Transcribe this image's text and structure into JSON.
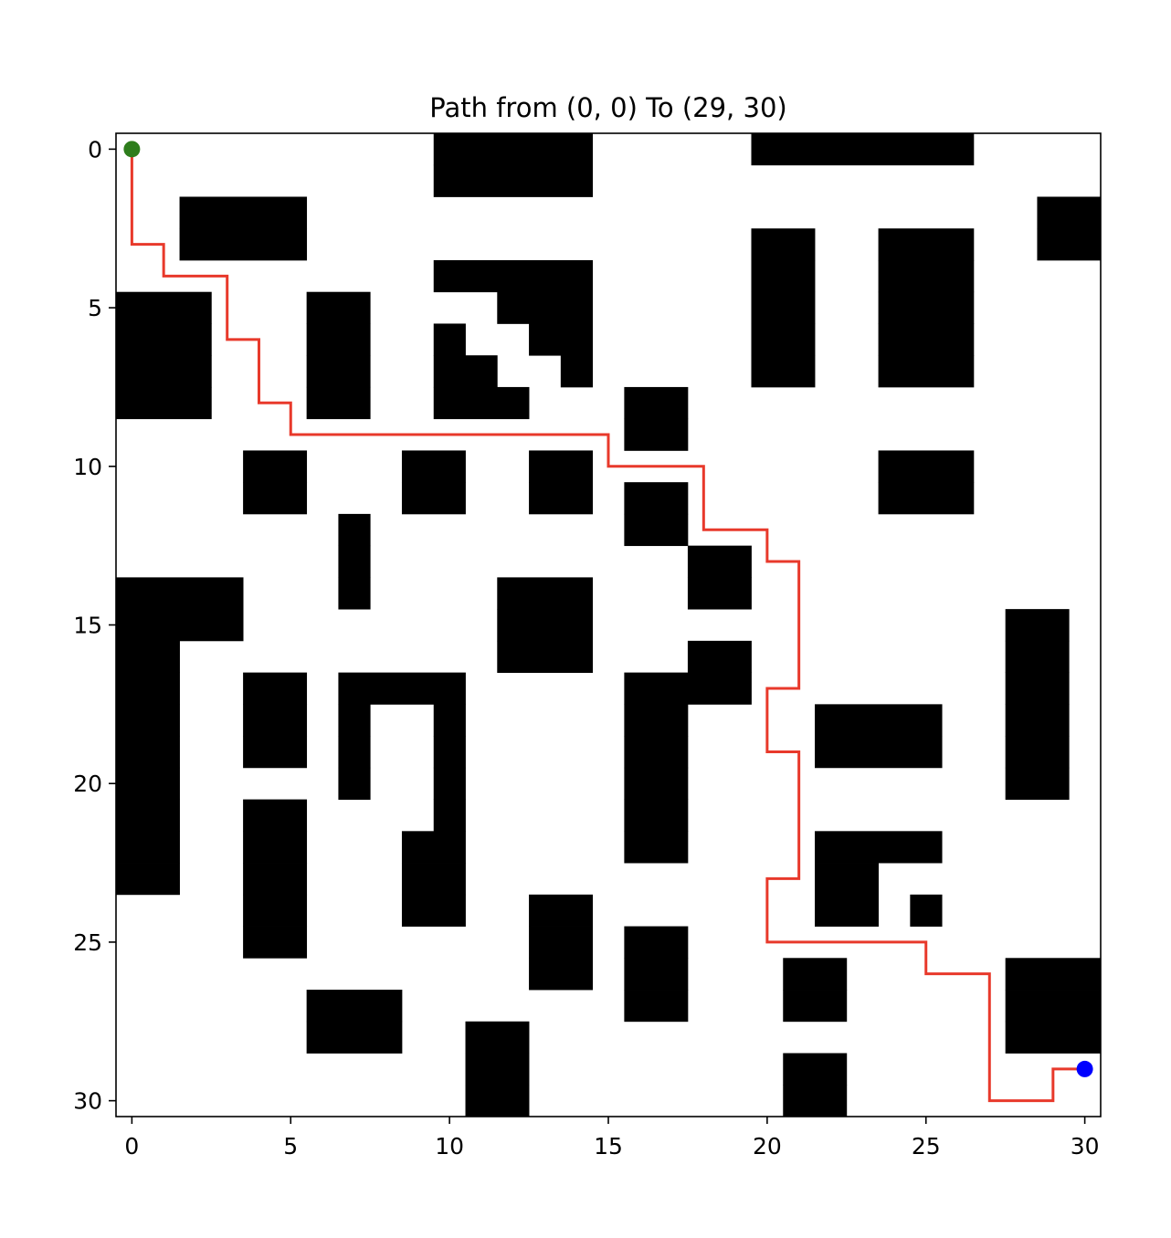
{
  "chart_data": {
    "type": "heatmap",
    "title": "Path from (0, 0) To (29, 30)",
    "xlabel": "",
    "ylabel": "",
    "grid": false,
    "y_axis_inverted": true,
    "xlim": [
      -0.5,
      30.5
    ],
    "ylim": [
      30.5,
      -0.5
    ],
    "xticks": [
      0,
      5,
      10,
      15,
      20,
      25,
      30
    ],
    "yticks": [
      0,
      5,
      10,
      15,
      20,
      25,
      30
    ],
    "xtick_labels": [
      "0",
      "5",
      "10",
      "15",
      "20",
      "25",
      "30"
    ],
    "ytick_labels": [
      "0",
      "5",
      "10",
      "15",
      "20",
      "25",
      "30"
    ],
    "grid_size": [
      31,
      31
    ],
    "obstacle_color": "#000000",
    "free_color": "#ffffff",
    "path_color": "#e8392b",
    "start_color": "#2e7d1c",
    "goal_color": "#0000ff",
    "obstacles": [
      {
        "row": 0,
        "cols": [
          [
            10,
            14
          ],
          [
            20,
            26
          ]
        ]
      },
      {
        "row": 1,
        "cols": [
          [
            10,
            14
          ]
        ]
      },
      {
        "row": 2,
        "cols": [
          [
            2,
            5
          ],
          [
            29,
            30
          ]
        ]
      },
      {
        "row": 3,
        "cols": [
          [
            2,
            5
          ],
          [
            20,
            21
          ],
          [
            24,
            26
          ],
          [
            29,
            30
          ]
        ]
      },
      {
        "row": 4,
        "cols": [
          [
            10,
            14
          ],
          [
            20,
            21
          ],
          [
            24,
            26
          ]
        ]
      },
      {
        "row": 5,
        "cols": [
          [
            0,
            2
          ],
          [
            6,
            7
          ],
          [
            12,
            14
          ],
          [
            20,
            21
          ],
          [
            24,
            26
          ]
        ]
      },
      {
        "row": 6,
        "cols": [
          [
            0,
            2
          ],
          [
            6,
            7
          ],
          [
            10,
            10
          ],
          [
            13,
            14
          ],
          [
            20,
            21
          ],
          [
            24,
            26
          ]
        ]
      },
      {
        "row": 7,
        "cols": [
          [
            0,
            2
          ],
          [
            6,
            7
          ],
          [
            10,
            11
          ],
          [
            14,
            14
          ],
          [
            20,
            21
          ],
          [
            24,
            26
          ]
        ]
      },
      {
        "row": 8,
        "cols": [
          [
            0,
            2
          ],
          [
            6,
            7
          ],
          [
            10,
            12
          ],
          [
            16,
            17
          ]
        ]
      },
      {
        "row": 9,
        "cols": [
          [
            16,
            17
          ]
        ]
      },
      {
        "row": 10,
        "cols": [
          [
            4,
            5
          ],
          [
            9,
            10
          ],
          [
            13,
            14
          ],
          [
            24,
            26
          ]
        ]
      },
      {
        "row": 11,
        "cols": [
          [
            4,
            5
          ],
          [
            9,
            10
          ],
          [
            13,
            14
          ],
          [
            16,
            17
          ],
          [
            24,
            26
          ]
        ]
      },
      {
        "row": 12,
        "cols": [
          [
            7,
            7
          ],
          [
            16,
            17
          ]
        ]
      },
      {
        "row": 13,
        "cols": [
          [
            7,
            7
          ],
          [
            18,
            19
          ]
        ]
      },
      {
        "row": 14,
        "cols": [
          [
            0,
            3
          ],
          [
            7,
            7
          ],
          [
            12,
            14
          ],
          [
            18,
            19
          ]
        ]
      },
      {
        "row": 15,
        "cols": [
          [
            0,
            3
          ],
          [
            12,
            14
          ],
          [
            28,
            29
          ]
        ]
      },
      {
        "row": 16,
        "cols": [
          [
            0,
            1
          ],
          [
            12,
            14
          ],
          [
            18,
            19
          ],
          [
            28,
            29
          ]
        ]
      },
      {
        "row": 17,
        "cols": [
          [
            0,
            1
          ],
          [
            4,
            5
          ],
          [
            7,
            10
          ],
          [
            16,
            19
          ],
          [
            28,
            29
          ]
        ]
      },
      {
        "row": 18,
        "cols": [
          [
            0,
            1
          ],
          [
            4,
            5
          ],
          [
            7,
            7
          ],
          [
            10,
            10
          ],
          [
            16,
            17
          ],
          [
            22,
            25
          ],
          [
            28,
            29
          ]
        ]
      },
      {
        "row": 19,
        "cols": [
          [
            0,
            1
          ],
          [
            4,
            5
          ],
          [
            7,
            7
          ],
          [
            10,
            10
          ],
          [
            16,
            17
          ],
          [
            22,
            25
          ],
          [
            28,
            29
          ]
        ]
      },
      {
        "row": 20,
        "cols": [
          [
            0,
            1
          ],
          [
            7,
            7
          ],
          [
            10,
            10
          ],
          [
            16,
            17
          ],
          [
            28,
            29
          ]
        ]
      },
      {
        "row": 21,
        "cols": [
          [
            0,
            1
          ],
          [
            4,
            5
          ],
          [
            10,
            10
          ],
          [
            16,
            17
          ]
        ]
      },
      {
        "row": 22,
        "cols": [
          [
            0,
            1
          ],
          [
            4,
            5
          ],
          [
            9,
            10
          ],
          [
            16,
            17
          ],
          [
            22,
            25
          ]
        ]
      },
      {
        "row": 23,
        "cols": [
          [
            0,
            1
          ],
          [
            4,
            5
          ],
          [
            9,
            10
          ],
          [
            22,
            23
          ]
        ]
      },
      {
        "row": 24,
        "cols": [
          [
            4,
            5
          ],
          [
            9,
            10
          ],
          [
            13,
            14
          ],
          [
            22,
            23
          ],
          [
            25,
            25
          ]
        ]
      },
      {
        "row": 25,
        "cols": [
          [
            4,
            5
          ],
          [
            13,
            14
          ],
          [
            16,
            17
          ]
        ]
      },
      {
        "row": 26,
        "cols": [
          [
            13,
            14
          ],
          [
            16,
            17
          ],
          [
            21,
            22
          ],
          [
            28,
            30
          ]
        ]
      },
      {
        "row": 27,
        "cols": [
          [
            6,
            8
          ],
          [
            16,
            17
          ],
          [
            21,
            22
          ],
          [
            28,
            30
          ]
        ]
      },
      {
        "row": 28,
        "cols": [
          [
            6,
            8
          ],
          [
            11,
            12
          ],
          [
            28,
            30
          ]
        ]
      },
      {
        "row": 29,
        "cols": [
          [
            11,
            12
          ],
          [
            21,
            22
          ]
        ]
      },
      {
        "row": 30,
        "cols": [
          [
            11,
            12
          ],
          [
            21,
            22
          ]
        ]
      }
    ],
    "path": [
      [
        0,
        0
      ],
      [
        0,
        3
      ],
      [
        1,
        3
      ],
      [
        1,
        4
      ],
      [
        3,
        4
      ],
      [
        3,
        6
      ],
      [
        4,
        6
      ],
      [
        4,
        8
      ],
      [
        5,
        8
      ],
      [
        5,
        9
      ],
      [
        15,
        9
      ],
      [
        15,
        10
      ],
      [
        18,
        10
      ],
      [
        18,
        12
      ],
      [
        20,
        12
      ],
      [
        20,
        13
      ],
      [
        21,
        13
      ],
      [
        21,
        17
      ],
      [
        20,
        17
      ],
      [
        20,
        19
      ],
      [
        21,
        19
      ],
      [
        21,
        23
      ],
      [
        20,
        23
      ],
      [
        20,
        25
      ],
      [
        25,
        25
      ],
      [
        25,
        26
      ],
      [
        27,
        26
      ],
      [
        27,
        30
      ],
      [
        29,
        30
      ],
      [
        29,
        29
      ],
      [
        30,
        29
      ]
    ],
    "start": [
      0,
      0
    ],
    "goal": [
      30,
      29
    ]
  }
}
